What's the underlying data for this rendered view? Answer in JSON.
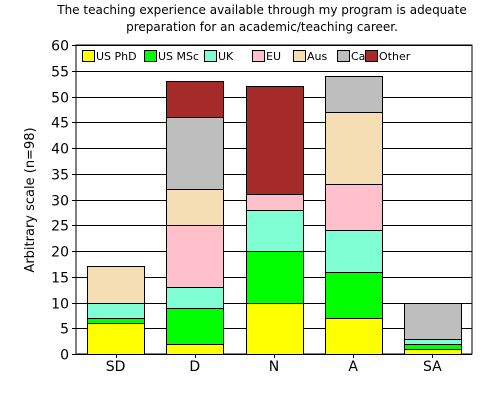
{
  "chart_data": {
    "type": "bar",
    "stacked": true,
    "title_lines": [
      "The teaching experience available through my program is adequate",
      "preparation for an academic/teaching career."
    ],
    "xlabel": "",
    "ylabel": "Arbitrary scale (n=98)",
    "categories": [
      "SD",
      "D",
      "N",
      "A",
      "SA"
    ],
    "ylim": [
      0,
      60
    ],
    "yticks": [
      0,
      5,
      10,
      15,
      20,
      25,
      30,
      35,
      40,
      45,
      50,
      55,
      60
    ],
    "grid": true,
    "legend_position": "top",
    "series": [
      {
        "name": "US PhD",
        "color": "#ffff00",
        "values": [
          6,
          2,
          10,
          7,
          1
        ]
      },
      {
        "name": "US MSc",
        "color": "#00ff00",
        "values": [
          1,
          7,
          10,
          9,
          1
        ]
      },
      {
        "name": "UK",
        "color": "#80ffd4",
        "values": [
          3,
          4,
          8,
          8,
          1
        ]
      },
      {
        "name": "EU",
        "color": "#ffc0cb",
        "values": [
          0,
          12,
          3,
          9,
          0
        ]
      },
      {
        "name": "Aus",
        "color": "#f5deb3",
        "values": [
          7,
          7,
          0,
          14,
          0
        ]
      },
      {
        "name": "Ca",
        "color": "#bebebe",
        "values": [
          0,
          14,
          0,
          7,
          7
        ]
      },
      {
        "name": "Other",
        "color": "#a52a2a",
        "values": [
          0,
          7,
          21,
          0,
          0
        ]
      }
    ]
  }
}
